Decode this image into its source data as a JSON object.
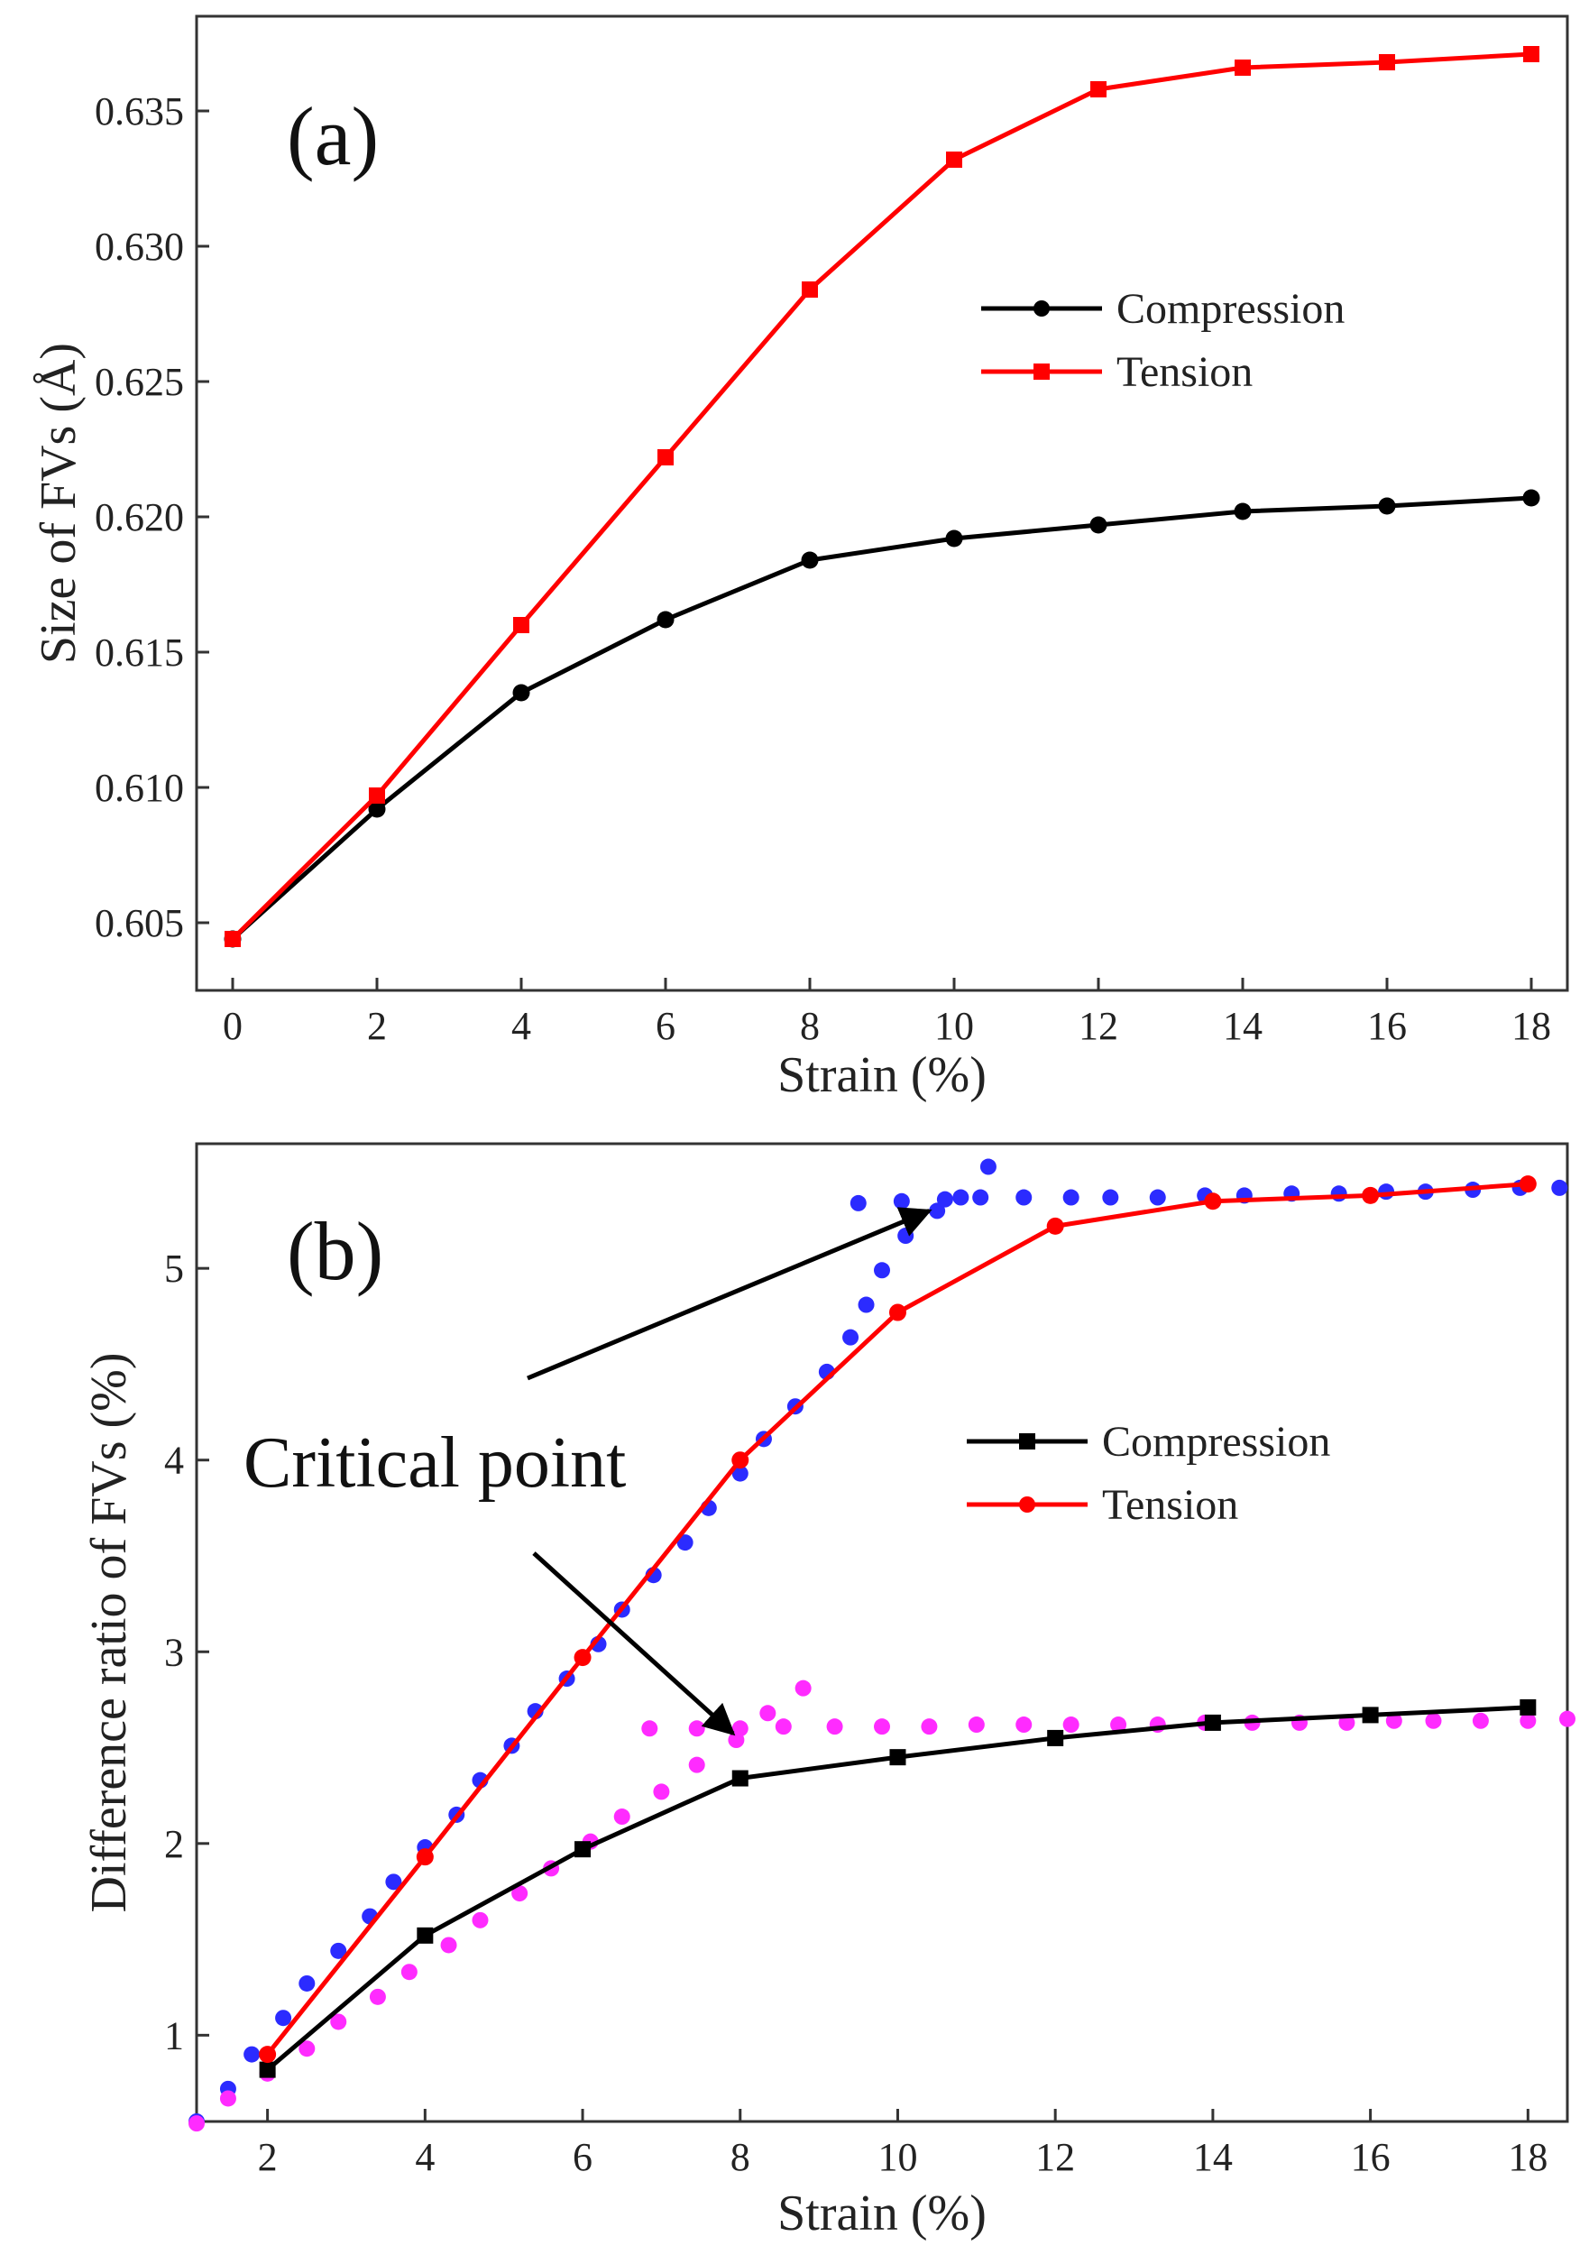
{
  "chart_data": [
    {
      "type": "line",
      "panel_label": "(a)",
      "xlabel": "Strain (%)",
      "ylabel": "Size of FVs (Å)",
      "xlim": [
        -0.5,
        18.5
      ],
      "ylim": [
        0.6025,
        0.6385
      ],
      "xticks": [
        0,
        2,
        4,
        6,
        8,
        10,
        12,
        14,
        16,
        18
      ],
      "yticks": [
        0.605,
        0.61,
        0.615,
        0.62,
        0.625,
        0.63,
        0.635
      ],
      "ytick_labels": [
        "0.605",
        "0.610",
        "0.615",
        "0.620",
        "0.625",
        "0.630",
        "0.635"
      ],
      "legend_position": "center-right",
      "series": [
        {
          "name": "Compression",
          "color": "#000000",
          "marker": "circle",
          "x": [
            0,
            2,
            4,
            6,
            8,
            10,
            12,
            14,
            16,
            18
          ],
          "y": [
            0.6044,
            0.6092,
            0.6135,
            0.6162,
            0.6184,
            0.6192,
            0.6197,
            0.6202,
            0.6204,
            0.6207
          ]
        },
        {
          "name": "Tension",
          "color": "#ff0000",
          "marker": "square",
          "x": [
            0,
            2,
            4,
            6,
            8,
            10,
            12,
            14,
            16,
            18
          ],
          "y": [
            0.6044,
            0.6097,
            0.616,
            0.6222,
            0.6284,
            0.6332,
            0.6358,
            0.6366,
            0.6368,
            0.6371
          ]
        }
      ]
    },
    {
      "type": "line",
      "panel_label": "(b)",
      "xlabel": "Strain (%)",
      "ylabel": "Difference ratio of FVs (%)",
      "xlim": [
        1.1,
        18.5
      ],
      "ylim": [
        0.55,
        5.65
      ],
      "xticks": [
        2,
        4,
        6,
        8,
        10,
        12,
        14,
        16,
        18
      ],
      "yticks": [
        1,
        2,
        3,
        4,
        5
      ],
      "legend_position": "center-right",
      "annotation": {
        "text": "Critical point",
        "targets": [
          {
            "x": 10.4,
            "y": 5.3
          },
          {
            "x": 8.0,
            "y": 2.63
          }
        ]
      },
      "series": [
        {
          "name": "Compression",
          "color": "#000000",
          "marker": "square",
          "x": [
            2,
            4,
            6,
            8,
            10,
            12,
            14,
            16,
            18
          ],
          "y": [
            0.82,
            1.52,
            1.97,
            2.34,
            2.45,
            2.55,
            2.63,
            2.67,
            2.71
          ]
        },
        {
          "name": "Tension",
          "color": "#ff0000",
          "marker": "circle",
          "x": [
            2,
            4,
            6,
            8,
            10,
            12,
            14,
            16,
            18
          ],
          "y": [
            0.9,
            1.93,
            2.97,
            4.0,
            4.77,
            5.22,
            5.35,
            5.38,
            5.44
          ]
        },
        {
          "name": "Tension fit (dotted)",
          "color": "#2b2bff",
          "marker": "dot",
          "show_in_legend": false,
          "x": [
            1.1,
            1.5,
            1.8,
            2.2,
            2.5,
            2.9,
            3.3,
            3.6,
            4.0,
            4.4,
            4.7,
            5.1,
            5.4,
            5.8,
            6.2,
            6.5,
            6.9,
            7.3,
            7.6,
            8.0,
            8.3,
            8.7,
            9.1,
            9.4,
            9.6,
            9.8,
            10.1,
            10.5,
            9.5,
            10.05,
            10.6,
            10.8,
            11.05,
            11.15,
            11.6,
            12.2,
            12.7,
            13.3,
            13.9,
            14.4,
            15.0,
            15.6,
            16.2,
            16.7,
            17.3,
            17.9,
            18.4
          ],
          "y": [
            0.55,
            0.72,
            0.9,
            1.09,
            1.27,
            1.44,
            1.62,
            1.8,
            1.98,
            2.15,
            2.33,
            2.51,
            2.69,
            2.86,
            3.04,
            3.22,
            3.4,
            3.57,
            3.75,
            3.93,
            4.11,
            4.28,
            4.46,
            4.64,
            4.81,
            4.99,
            5.17,
            5.3,
            5.34,
            5.35,
            5.36,
            5.37,
            5.37,
            5.53,
            5.37,
            5.37,
            5.37,
            5.37,
            5.38,
            5.38,
            5.39,
            5.39,
            5.4,
            5.4,
            5.41,
            5.42,
            5.42
          ]
        },
        {
          "name": "Compression fit (dotted)",
          "color": "#ff2bff",
          "marker": "dot",
          "show_in_legend": false,
          "x": [
            1.1,
            1.5,
            2.0,
            2.5,
            2.9,
            3.4,
            3.8,
            4.3,
            4.7,
            5.2,
            5.6,
            6.1,
            6.5,
            7.0,
            7.45,
            7.95,
            8.35,
            8.8,
            6.85,
            7.45,
            8.0,
            8.55,
            9.2,
            9.8,
            10.4,
            11.0,
            11.6,
            12.2,
            12.8,
            13.3,
            13.9,
            14.5,
            15.1,
            15.7,
            16.3,
            16.8,
            17.4,
            18.0,
            18.5
          ],
          "y": [
            0.54,
            0.67,
            0.8,
            0.93,
            1.07,
            1.2,
            1.33,
            1.47,
            1.6,
            1.74,
            1.87,
            2.01,
            2.14,
            2.27,
            2.41,
            2.54,
            2.68,
            2.81,
            2.6,
            2.6,
            2.6,
            2.61,
            2.61,
            2.61,
            2.61,
            2.62,
            2.62,
            2.62,
            2.62,
            2.62,
            2.63,
            2.63,
            2.63,
            2.63,
            2.64,
            2.64,
            2.64,
            2.64,
            2.65
          ]
        }
      ]
    }
  ]
}
